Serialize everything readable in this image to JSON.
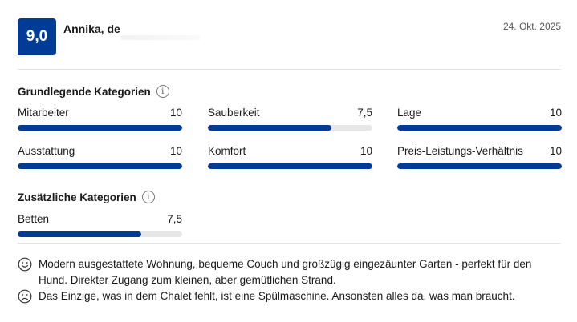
{
  "review": {
    "score": "9,0",
    "reviewer": "Annika, de",
    "date": "24. Okt. 2025"
  },
  "basic": {
    "title": "Grundlegende Kategorien",
    "items": [
      {
        "label": "Mitarbeiter",
        "value": "10",
        "fraction": 1.0
      },
      {
        "label": "Sauberkeit",
        "value": "7,5",
        "fraction": 0.75
      },
      {
        "label": "Lage",
        "value": "10",
        "fraction": 1.0
      },
      {
        "label": "Ausstattung",
        "value": "10",
        "fraction": 1.0
      },
      {
        "label": "Komfort",
        "value": "10",
        "fraction": 1.0
      },
      {
        "label": "Preis-Leistungs-Verhältnis",
        "value": "10",
        "fraction": 1.0
      }
    ]
  },
  "extra": {
    "title": "Zusätzliche Kategorien",
    "items": [
      {
        "label": "Betten",
        "value": "7,5",
        "fraction": 0.75
      }
    ]
  },
  "comments": {
    "positive": "Modern ausgestattete Wohnung, bequeme Couch und großzügig eingezäunter Garten - perfekt für den Hund. Direkter Zugang zum kleinen, aber gemütlichen Strand.",
    "negative": "Das Einzige, was in dem Chalet fehlt, ist eine Spülmaschine. Ansonsten alles da, was man braucht."
  },
  "icons": {
    "info": "info-icon",
    "positive": "smile-face-icon",
    "negative": "sad-face-icon"
  },
  "colors": {
    "accent": "#003b95",
    "track": "#e7e7e7"
  }
}
